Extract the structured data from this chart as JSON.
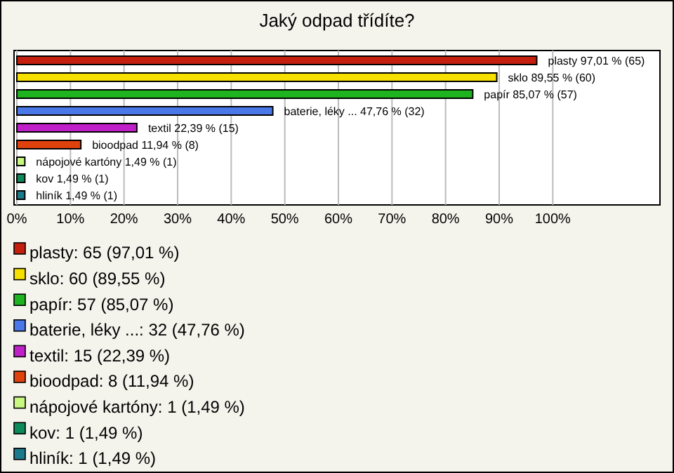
{
  "chart_data": {
    "type": "bar",
    "orientation": "horizontal",
    "title": "Jaký odpad třídíte?",
    "categories": [
      null,
      null,
      null,
      null,
      null,
      null,
      null,
      null,
      null
    ],
    "values": [
      97.01,
      89.55,
      85.07,
      47.76,
      22.39,
      11.94,
      1.49,
      1.49,
      1.49
    ],
    "colors": [
      "#c41e0e",
      "#f5e000",
      "#1fb41f",
      "#4a78e8",
      "#c020c8",
      "#e0420e",
      "#c8f880",
      "#0e8a5a",
      "#1a7a8c"
    ],
    "value_labels": [
      "plasty 97,01 % (65)",
      "sklo 89,55 % (60)",
      "papír 85,07 % (57)",
      "baterie, léky ... 47,76 % (32)",
      "textil 22,39 % (15)",
      "bioodpad 11,94 % (8)",
      "nápojové kartóny 1,49 % (1)",
      "kov 1,49 % (1)",
      "hliník 1,49 % (1)"
    ],
    "xlim": [
      0,
      120
    ],
    "xticks": [
      {
        "value": 0,
        "label": "0%"
      },
      {
        "value": 10,
        "label": "10%"
      },
      {
        "value": 20,
        "label": "20%"
      },
      {
        "value": 30,
        "label": "30%"
      },
      {
        "value": 40,
        "label": "40%"
      },
      {
        "value": 50,
        "label": "50%"
      },
      {
        "value": 60,
        "label": "60%"
      },
      {
        "value": 70,
        "label": "70%"
      },
      {
        "value": 80,
        "label": "80%"
      },
      {
        "value": 90,
        "label": "90%"
      },
      {
        "value": 100,
        "label": "100%"
      }
    ],
    "grid": "x",
    "annotations": [
      "plasty: 65 (97,01 %)",
      "sklo: 60 (89,55 %)",
      "papír: 57 (85,07 %)",
      "baterie, léky ...: 32 (47,76 %)",
      "textil: 15 (22,39 %)",
      "bioodpad: 8 (11,94 %)",
      "nápojové kartóny: 1 (1,49 %)",
      "kov: 1 (1,49 %)",
      "hliník: 1 (1,49 %)"
    ]
  }
}
